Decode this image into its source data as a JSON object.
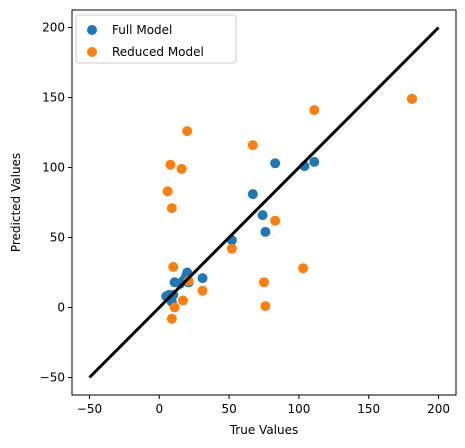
{
  "chart_data": {
    "type": "scatter",
    "title": "",
    "xlabel": "True Values",
    "ylabel": "Predicted Values",
    "xlim": [
      -62.5,
      212.5
    ],
    "ylim": [
      -62.5,
      212.5
    ],
    "x_ticks": [
      -50,
      0,
      50,
      100,
      150,
      200
    ],
    "y_ticks": [
      -50,
      0,
      50,
      100,
      150,
      200
    ],
    "grid": false,
    "legend_position": "top-left",
    "reference_line": {
      "x": [
        -50,
        200
      ],
      "y": [
        -50,
        200
      ],
      "color": "#000000"
    },
    "series": [
      {
        "name": "Full Model",
        "color": "#1f77b4",
        "points": [
          [
            5,
            8
          ],
          [
            7,
            9
          ],
          [
            8,
            6
          ],
          [
            9,
            4
          ],
          [
            10,
            9
          ],
          [
            11,
            18
          ],
          [
            15,
            17
          ],
          [
            17,
            19
          ],
          [
            19,
            22
          ],
          [
            20,
            25
          ],
          [
            21,
            18
          ],
          [
            31,
            21
          ],
          [
            52,
            48
          ],
          [
            67,
            81
          ],
          [
            74,
            66
          ],
          [
            76,
            54
          ],
          [
            83,
            103
          ],
          [
            104,
            101
          ],
          [
            111,
            104
          ],
          [
            181,
            149
          ]
        ]
      },
      {
        "name": "Reduced Model",
        "color": "#ff7f0e",
        "points": [
          [
            6,
            83
          ],
          [
            8,
            102
          ],
          [
            9,
            71
          ],
          [
            9,
            -8
          ],
          [
            10,
            29
          ],
          [
            11,
            0
          ],
          [
            16,
            99
          ],
          [
            17,
            5
          ],
          [
            20,
            126
          ],
          [
            21,
            19
          ],
          [
            31,
            12
          ],
          [
            52,
            42
          ],
          [
            67,
            116
          ],
          [
            75,
            18
          ],
          [
            76,
            1
          ],
          [
            83,
            62
          ],
          [
            103,
            28
          ],
          [
            111,
            141
          ],
          [
            181,
            149
          ]
        ]
      }
    ]
  }
}
